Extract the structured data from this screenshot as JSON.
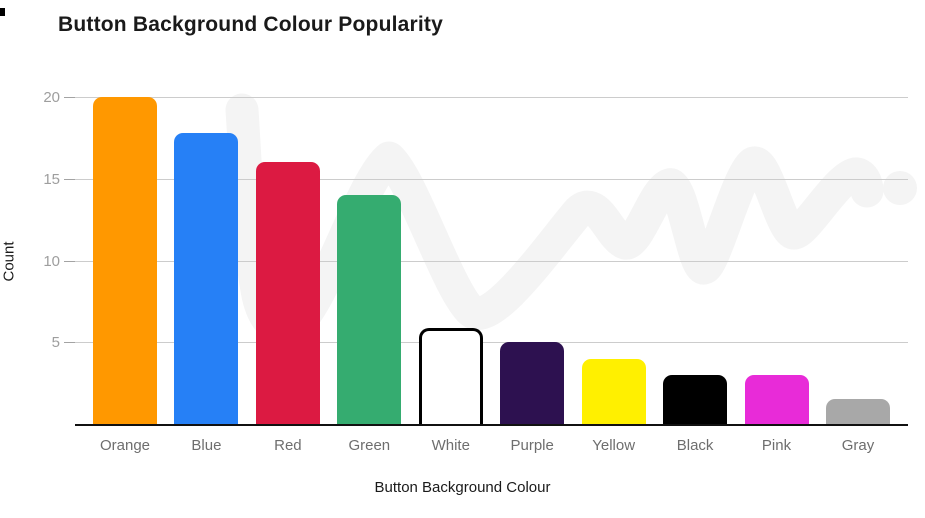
{
  "chart_data": {
    "type": "bar",
    "title": "Button Background Colour Popularity",
    "xlabel": "Button Background Colour",
    "ylabel": "Count",
    "categories": [
      "Orange",
      "Blue",
      "Red",
      "Green",
      "White",
      "Purple",
      "Yellow",
      "Black",
      "Pink",
      "Gray"
    ],
    "values": [
      20,
      17.8,
      16,
      14,
      5.9,
      5,
      4,
      3,
      3,
      1.5
    ],
    "bar_colors": [
      "#FF9800",
      "#2680F6",
      "#DC1A42",
      "#35AC70",
      "#FFFFFF",
      "#2D1150",
      "#FFF000",
      "#000000",
      "#E82BD8",
      "#A8A8A8"
    ],
    "outlined_bar_category": "White",
    "yticks": [
      5,
      10,
      15,
      20
    ],
    "ylim": [
      0,
      20
    ],
    "grid": true,
    "legend_position": "none"
  },
  "style": {
    "background": "#ffffff",
    "grid_color": "#cccccc",
    "tick_color": "#a3a3a3",
    "axis_line_color": "#111111",
    "ytick_label_color": "#9e9e9e",
    "category_label_color": "#6e6e6e",
    "title_color": "#1a1a1a",
    "watermark_color": "#f4f4f4",
    "outline_color": "#000000"
  }
}
